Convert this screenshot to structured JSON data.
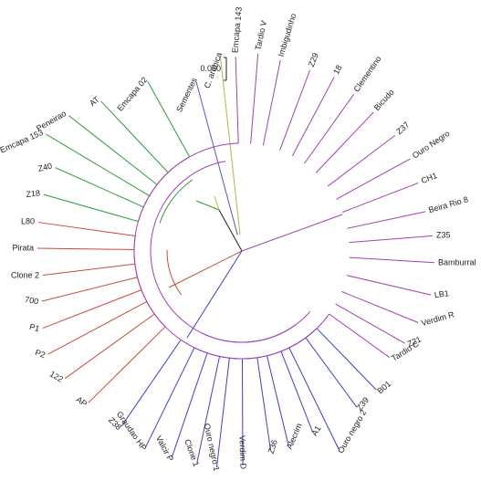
{
  "scale_bar": {
    "label": "0.050"
  },
  "clades": [
    {
      "name": "outgroup",
      "color": "#b5b840"
    },
    {
      "name": "sementes",
      "color": "#5a52c8"
    },
    {
      "name": "green",
      "color": "#2f9a3a"
    },
    {
      "name": "red",
      "color": "#cc4a36"
    },
    {
      "name": "blue",
      "color": "#3a3fd0"
    },
    {
      "name": "purple",
      "color": "#a43fb5"
    }
  ],
  "leaves": [
    {
      "label": "C. arabica",
      "clade": "outgroup"
    },
    {
      "label": "Sementes",
      "clade": "sementes"
    },
    {
      "label": "Emcapa 02",
      "clade": "green"
    },
    {
      "label": "AT",
      "clade": "green"
    },
    {
      "label": "Peneirao",
      "clade": "green"
    },
    {
      "label": "Emcapa 153",
      "clade": "green"
    },
    {
      "label": "Z40",
      "clade": "green"
    },
    {
      "label": "Z18",
      "clade": "green"
    },
    {
      "label": "L80",
      "clade": "red"
    },
    {
      "label": "Pirata",
      "clade": "red"
    },
    {
      "label": "Clone 2",
      "clade": "red"
    },
    {
      "label": "700",
      "clade": "red"
    },
    {
      "label": "P1",
      "clade": "red"
    },
    {
      "label": "P2",
      "clade": "red"
    },
    {
      "label": "122",
      "clade": "red"
    },
    {
      "label": "AP",
      "clade": "red"
    },
    {
      "label": "Z38",
      "clade": "blue"
    },
    {
      "label": "Graudao HP",
      "clade": "blue"
    },
    {
      "label": "Valcir P",
      "clade": "blue"
    },
    {
      "label": "Clone 1",
      "clade": "blue"
    },
    {
      "label": "Ouro negro 1",
      "clade": "blue"
    },
    {
      "label": "Verdim D",
      "clade": "blue"
    },
    {
      "label": "Z36",
      "clade": "blue"
    },
    {
      "label": "Alecrim",
      "clade": "blue"
    },
    {
      "label": "A1",
      "clade": "blue"
    },
    {
      "label": "Ouro negro 2",
      "clade": "blue"
    },
    {
      "label": "Z39",
      "clade": "blue"
    },
    {
      "label": "B01",
      "clade": "blue"
    },
    {
      "label": "Tardio C",
      "clade": "purple"
    },
    {
      "label": "Z21",
      "clade": "purple"
    },
    {
      "label": "Verdim R",
      "clade": "purple"
    },
    {
      "label": "LB1",
      "clade": "purple"
    },
    {
      "label": "Bamburral",
      "clade": "purple"
    },
    {
      "label": "Z35",
      "clade": "purple"
    },
    {
      "label": "Beira Rio 8",
      "clade": "purple"
    },
    {
      "label": "CH1",
      "clade": "purple"
    },
    {
      "label": "Ouro Negro",
      "clade": "purple"
    },
    {
      "label": "Z37",
      "clade": "purple"
    },
    {
      "label": "Bicudo",
      "clade": "purple"
    },
    {
      "label": "Clementino",
      "clade": "purple"
    },
    {
      "label": "18",
      "clade": "purple"
    },
    {
      "label": "Z29",
      "clade": "purple"
    },
    {
      "label": "Imbigudinho",
      "clade": "purple"
    },
    {
      "label": "Tardio V",
      "clade": "purple"
    },
    {
      "label": "Emcapa 143",
      "clade": "purple"
    }
  ]
}
